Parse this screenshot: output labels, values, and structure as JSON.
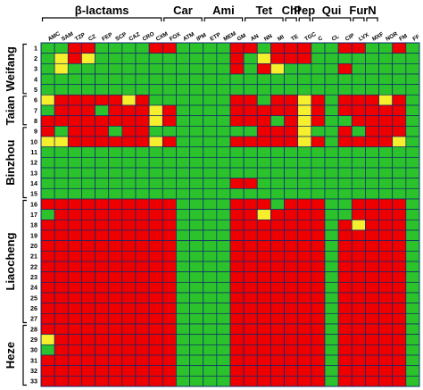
{
  "chart_data": {
    "type": "heatmap",
    "colors": {
      "R": "#ee0000",
      "I": "#f5ef2d",
      "S": "#2bc22b",
      "grid": "#0f2a6e"
    },
    "drug_classes": [
      {
        "label": "β-lactams",
        "span": [
          0,
          8
        ]
      },
      {
        "label": "Car",
        "span": [
          9,
          11
        ]
      },
      {
        "label": "Ami",
        "span": [
          12,
          14
        ]
      },
      {
        "label": "Tet",
        "span": [
          15,
          17
        ]
      },
      {
        "label": "Chl",
        "span": [
          18,
          18
        ]
      },
      {
        "label": "Pep",
        "span": [
          19,
          19
        ]
      },
      {
        "label": "Qui",
        "span": [
          20,
          22
        ]
      },
      {
        "label": "Fur",
        "span": [
          23,
          23
        ]
      },
      {
        "label": "N",
        "span": [
          24,
          24
        ]
      }
    ],
    "antibiotics": [
      "AMC",
      "SAM",
      "TZP",
      "CZ",
      "FEP",
      "SCP",
      "CAZ",
      "CRO",
      "CXM",
      "FOX",
      "ATM",
      "IPM",
      "ETP",
      "MEM",
      "GM",
      "AN",
      "NN",
      "MI",
      "TE",
      "TGC",
      "C",
      "CL",
      "CIP",
      "LVX",
      "MXF",
      "NOR",
      "FM",
      "FF"
    ],
    "isolates": [
      "1",
      "2",
      "3",
      "4",
      "5",
      "6",
      "7",
      "8",
      "9",
      "10",
      "11",
      "12",
      "13",
      "14",
      "15",
      "16",
      "17",
      "18",
      "19",
      "20",
      "21",
      "22",
      "23",
      "24",
      "25",
      "26",
      "27",
      "28",
      "29",
      "30",
      "31",
      "32",
      "33"
    ],
    "cities": [
      {
        "label": "Weifang",
        "rows": [
          1,
          5
        ]
      },
      {
        "label": "Taian",
        "rows": [
          6,
          8
        ]
      },
      {
        "label": "Binzhou",
        "rows": [
          9,
          15
        ]
      },
      {
        "label": "Liaocheng",
        "rows": [
          16,
          27
        ]
      },
      {
        "label": "Heze",
        "rows": [
          28,
          33
        ]
      }
    ],
    "matrix": [
      "SSRRSSSSRRSSSSRRSRRRSSRRSSRS",
      "SIRISSSSSSSSSSRSIRRRSSSSSSSS",
      "SISSSSSSSSSSSSRSRISSSSRSSSSS",
      "SSSSSSSSSSSSSSSSSSSSSSSSSSSS",
      "SSSSSSSSSSSSSSSSSSSSSSSSSSSS",
      "IRRRRRIRSSSSSSRRSRRIRSRRRIRS",
      "SRRRSRRRIRSSSSRRRRRIRSRRRRRS",
      "RRRRRRRRIRSSSSRRRSRIRSSRRRRS",
      "RSRRRSRRSSSSSSSSRRRISSRSRRRS",
      "IIRRRRRRIRSSSSRRRRRIRSRRRRIS",
      "SSSSSSSSSSSSSSSSSSSSSSSSSSSS",
      "SSSSSSSSSSSSSSSSSSSSSSSSSSSS",
      "SSSSSSSSSSSSSSSSSSSSSSSSSSSS",
      "SSSSSSSSSSSSSSRRSSSSSSSSSSSS",
      "SSSSSSSSSSSSSSSSSSSSSSSSSSSS",
      "RRRRRRRRRRSSSSRRRSRRRSSRRRRS",
      "SRRRRRRRRRSSSSRRIRRRRSSRRRRS",
      "RRRRRRRRRRSSSSRRRRRRRSRIRRRS",
      "RRRRRRRRRRSSSSRRRRRRRSRRRRRS",
      "RRRRRRRRRRSSSSRRRRRRRSRRRRRS",
      "RRRRRRRRRRSSSSRRRRRRRSRRRRRS",
      "RRRRRRRRRRSSSSRRRRRRRSRRRRRS",
      "RRRRRRRRRRSSSSRRRRRRRSRRRRRS",
      "RRRRRRRRRRSSSSRRRRRRRSRRRRRS",
      "RRRRRRRRRRSSSSRRRRRRRSRRRRRS",
      "RRRRRRRRRRSSSSRRRRRRRSRRRRRS",
      "RRRRRRRRRRSSSSRRRRRRRSRRRRRS",
      "RRRRRRRRRRSSSSRRRRRRRSRRRRRS",
      "IRRRRRRRRRSSSSRRRRRRRSRRRRRS",
      "SRRRRRRRRRSSSSRRRRRRRSRRRRRS",
      "RRRRRRRRRRSSSSRRRRRRRSRRRRRS",
      "RRRRRRRRRRSSSSRRRRRRRSRRRRRS",
      "RRRRRRRRRRSSSSRRRRRRRSRRRRRS"
    ]
  }
}
